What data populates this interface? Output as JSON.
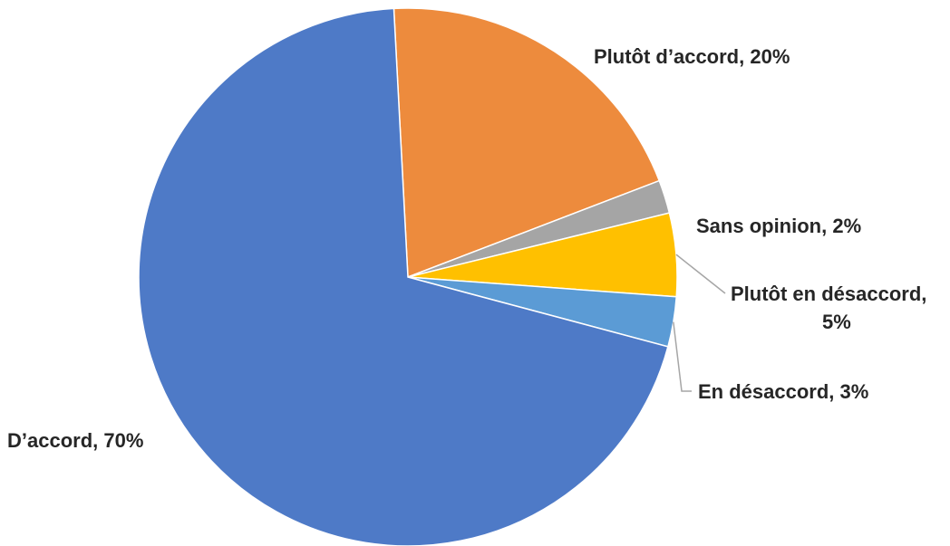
{
  "chart_data": {
    "type": "pie",
    "title": "",
    "start_angle_deg": -3,
    "direction": "clockwise",
    "legend": "none",
    "slices": [
      {
        "label": "Plutôt d’accord",
        "value": 20,
        "data_label": "Plutôt d’accord, 20%",
        "color": "#ED8B3D"
      },
      {
        "label": "Sans opinion",
        "value": 2,
        "data_label": "Sans opinion, 2%",
        "color": "#A5A5A5"
      },
      {
        "label": "Plutôt en désaccord",
        "value": 5,
        "data_label_lines": [
          "Plutôt en désaccord,",
          "5%"
        ],
        "color": "#FFC000"
      },
      {
        "label": "En désaccord",
        "value": 3,
        "data_label": "En désaccord, 3%",
        "color": "#5B9BD5"
      },
      {
        "label": "D’accord",
        "value": 70,
        "data_label": "D’accord, 70%",
        "color": "#4E7AC7"
      }
    ]
  }
}
